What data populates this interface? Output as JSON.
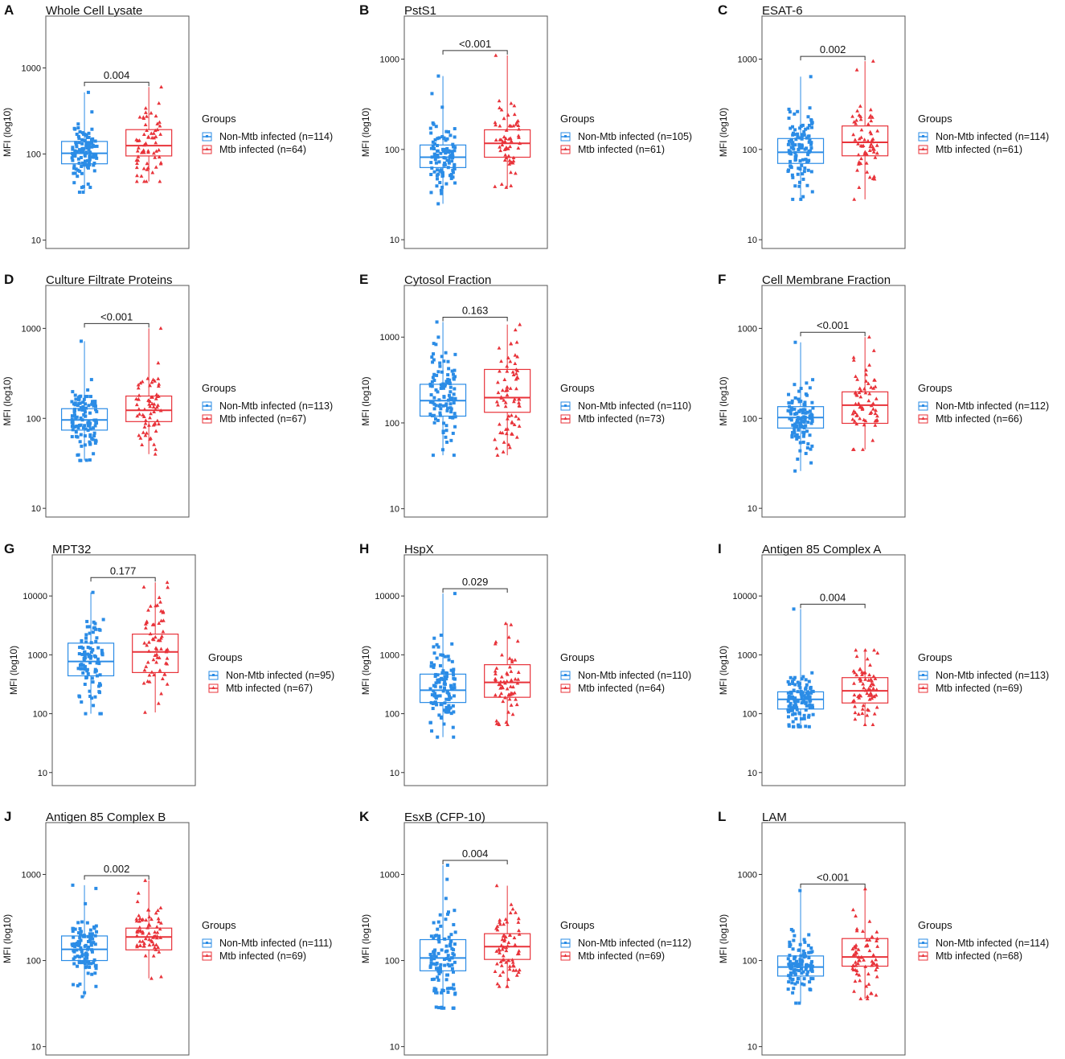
{
  "figure": {
    "y_axis_label": "MFI (log10)",
    "legend_title": "Groups",
    "colors": {
      "non_mtb": "#2b8ce6",
      "mtb": "#e8333a",
      "axis": "#444444"
    }
  },
  "chart_data": [
    {
      "letter": "A",
      "type": "box",
      "title": "Whole Cell Lysate",
      "p_value": "0.004",
      "ylim": [
        8,
        4000
      ],
      "yscale": "log10",
      "ticks": [
        10,
        100,
        1000
      ],
      "series": [
        {
          "name": "Non-Mtb infected (n=114)",
          "q1": 77,
          "median": 102,
          "q3": 140,
          "min": 36,
          "max": 520
        },
        {
          "name": "Mtb infected (n=64)",
          "q1": 95,
          "median": 125,
          "q3": 192,
          "min": 48,
          "max": 600
        }
      ]
    },
    {
      "letter": "B",
      "type": "box",
      "title": "PstS1",
      "p_value": "<0.001",
      "ylim": [
        8,
        3000
      ],
      "yscale": "log10",
      "ticks": [
        10,
        100,
        1000
      ],
      "series": [
        {
          "name": "Non-Mtb infected (n=105)",
          "q1": 63,
          "median": 82,
          "q3": 112,
          "min": 25,
          "max": 650
        },
        {
          "name": "Mtb infected (n=61)",
          "q1": 82,
          "median": 117,
          "q3": 165,
          "min": 38,
          "max": 1100
        }
      ]
    },
    {
      "letter": "C",
      "type": "box",
      "title": "ESAT-6",
      "p_value": "0.002",
      "ylim": [
        8,
        3000
      ],
      "yscale": "log10",
      "ticks": [
        10,
        100,
        1000
      ],
      "series": [
        {
          "name": "Non-Mtb infected (n=114)",
          "q1": 70,
          "median": 93,
          "q3": 132,
          "min": 28,
          "max": 640
        },
        {
          "name": "Mtb infected (n=61)",
          "q1": 85,
          "median": 120,
          "q3": 182,
          "min": 28,
          "max": 950
        }
      ]
    },
    {
      "letter": "D",
      "type": "box",
      "title": "Culture Filtrate Proteins",
      "p_value": "<0.001",
      "ylim": [
        8,
        3000
      ],
      "yscale": "log10",
      "ticks": [
        10,
        100,
        1000
      ],
      "series": [
        {
          "name": "Non-Mtb infected (n=113)",
          "q1": 74,
          "median": 96,
          "q3": 128,
          "min": 34,
          "max": 720
        },
        {
          "name": "Mtb infected (n=67)",
          "q1": 92,
          "median": 123,
          "q3": 177,
          "min": 40,
          "max": 1000
        }
      ]
    },
    {
      "letter": "E",
      "type": "box",
      "title": "Cytosol Fraction",
      "p_value": "0.163",
      "ylim": [
        8,
        4000
      ],
      "yscale": "log10",
      "ticks": [
        10,
        100,
        1000
      ],
      "series": [
        {
          "name": "Non-Mtb infected (n=110)",
          "q1": 120,
          "median": 182,
          "q3": 282,
          "min": 42,
          "max": 1500
        },
        {
          "name": "Mtb infected (n=73)",
          "q1": 133,
          "median": 197,
          "q3": 420,
          "min": 42,
          "max": 1400
        }
      ]
    },
    {
      "letter": "F",
      "type": "box",
      "title": "Cell Membrane Fraction",
      "p_value": "<0.001",
      "ylim": [
        8,
        3000
      ],
      "yscale": "log10",
      "ticks": [
        10,
        100,
        1000
      ],
      "series": [
        {
          "name": "Non-Mtb infected (n=112)",
          "q1": 78,
          "median": 102,
          "q3": 135,
          "min": 26,
          "max": 700
        },
        {
          "name": "Mtb infected (n=66)",
          "q1": 88,
          "median": 140,
          "q3": 197,
          "min": 45,
          "max": 800
        }
      ]
    },
    {
      "letter": "G",
      "type": "box",
      "title": "MPT32",
      "p_value": "0.177",
      "ylim": [
        6,
        50000
      ],
      "yscale": "log10",
      "ticks": [
        10,
        100,
        1000,
        10000
      ],
      "series": [
        {
          "name": "Non-Mtb infected (n=95)",
          "q1": 440,
          "median": 770,
          "q3": 1580,
          "min": 100,
          "max": 11500
        },
        {
          "name": "Mtb infected (n=67)",
          "q1": 500,
          "median": 1120,
          "q3": 2250,
          "min": 105,
          "max": 17000
        }
      ]
    },
    {
      "letter": "H",
      "type": "box",
      "title": "HspX",
      "p_value": "0.029",
      "ylim": [
        6,
        50000
      ],
      "yscale": "log10",
      "ticks": [
        10,
        100,
        1000,
        10000
      ],
      "series": [
        {
          "name": "Non-Mtb infected (n=110)",
          "q1": 155,
          "median": 250,
          "q3": 470,
          "min": 40,
          "max": 11000
        },
        {
          "name": "Mtb infected (n=64)",
          "q1": 190,
          "median": 340,
          "q3": 680,
          "min": 65,
          "max": 3400
        }
      ]
    },
    {
      "letter": "I",
      "type": "box",
      "title": "Antigen 85 Complex A",
      "p_value": "0.004",
      "ylim": [
        6,
        50000
      ],
      "yscale": "log10",
      "ticks": [
        10,
        100,
        1000,
        10000
      ],
      "series": [
        {
          "name": "Non-Mtb infected (n=113)",
          "q1": 120,
          "median": 175,
          "q3": 235,
          "min": 60,
          "max": 6000
        },
        {
          "name": "Mtb infected (n=69)",
          "q1": 152,
          "median": 245,
          "q3": 410,
          "min": 65,
          "max": 1200
        }
      ]
    },
    {
      "letter": "J",
      "type": "box",
      "title": "Antigen 85 Complex B",
      "p_value": "0.002",
      "ylim": [
        8,
        4000
      ],
      "yscale": "log10",
      "ticks": [
        10,
        100,
        1000
      ],
      "series": [
        {
          "name": "Non-Mtb infected (n=111)",
          "q1": 100,
          "median": 135,
          "q3": 193,
          "min": 38,
          "max": 750
        },
        {
          "name": "Mtb infected (n=69)",
          "q1": 133,
          "median": 188,
          "q3": 238,
          "min": 62,
          "max": 850
        }
      ]
    },
    {
      "letter": "K",
      "type": "box",
      "title": "EsxB (CFP-10)",
      "p_value": "0.004",
      "ylim": [
        8,
        4000
      ],
      "yscale": "log10",
      "ticks": [
        10,
        100,
        1000
      ],
      "series": [
        {
          "name": "Non-Mtb infected (n=112)",
          "q1": 76,
          "median": 107,
          "q3": 175,
          "min": 28,
          "max": 1280
        },
        {
          "name": "Mtb infected (n=69)",
          "q1": 103,
          "median": 145,
          "q3": 205,
          "min": 50,
          "max": 740
        }
      ]
    },
    {
      "letter": "L",
      "type": "box",
      "title": "LAM",
      "p_value": "<0.001",
      "ylim": [
        8,
        4000
      ],
      "yscale": "log10",
      "ticks": [
        10,
        100,
        1000
      ],
      "series": [
        {
          "name": "Non-Mtb infected (n=114)",
          "q1": 66,
          "median": 84,
          "q3": 113,
          "min": 32,
          "max": 650
        },
        {
          "name": "Mtb infected (n=68)",
          "q1": 86,
          "median": 110,
          "q3": 180,
          "min": 36,
          "max": 680
        }
      ]
    }
  ]
}
